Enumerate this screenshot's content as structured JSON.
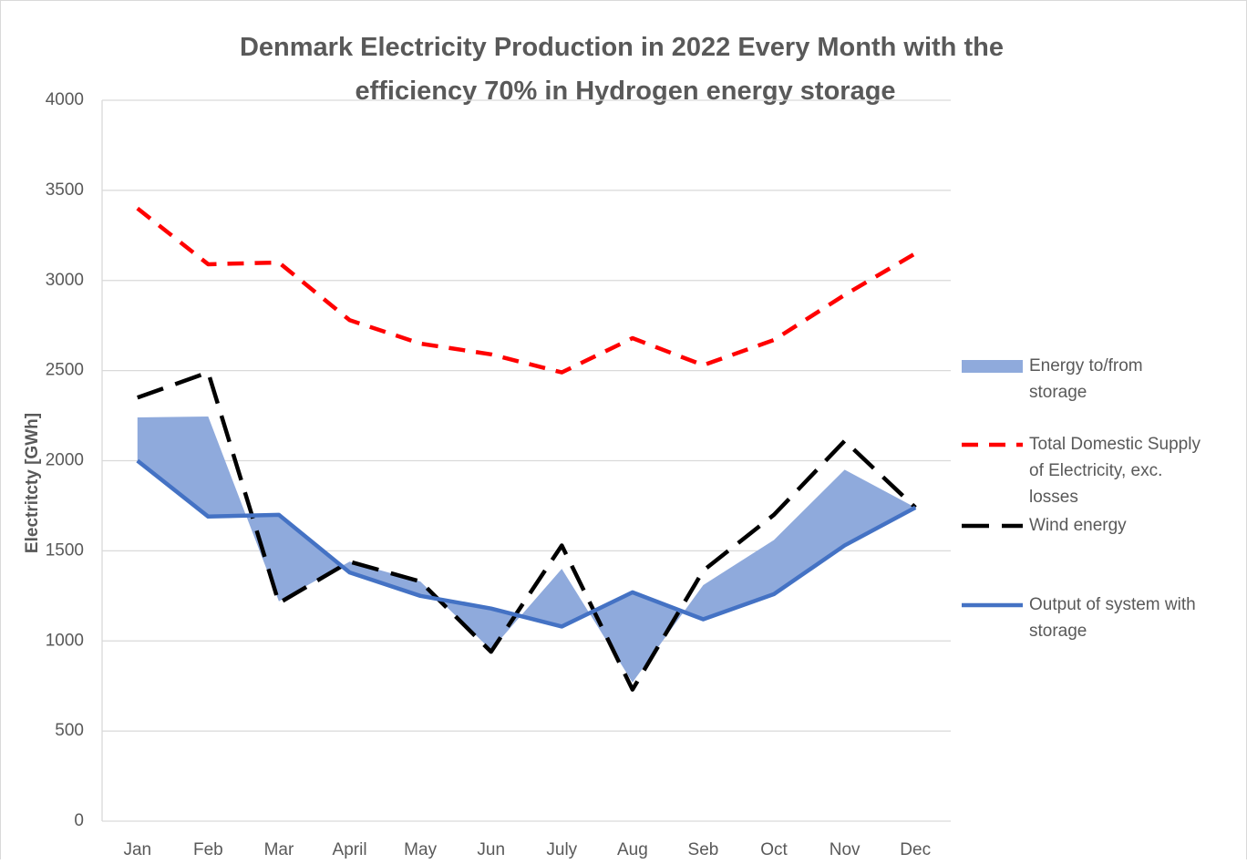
{
  "chart_data": {
    "type": "line",
    "title": "Denmark Electricity Production in 2022 Every Month  with the efficiency 70% in Hydrogen energy storage",
    "y_label": "Electritcty [GWh]",
    "categories": [
      "Jan",
      "Feb",
      "Mar",
      "April",
      "May",
      "Jun",
      "July",
      "Aug",
      "Seb",
      "Oct",
      "Nov",
      "Dec"
    ],
    "series": [
      {
        "name": "Energy to/from storage",
        "kind": "band",
        "color": "#8faadc",
        "values": [
          2240,
          2245,
          1220,
          1440,
          1330,
          950,
          1400,
          770,
          1310,
          1560,
          1950,
          1740
        ]
      },
      {
        "name": "Total Domestic Supply of Electricity, exc. losses",
        "kind": "dashed",
        "color": "#ff0000",
        "values": [
          3400,
          3090,
          3100,
          2780,
          2650,
          2590,
          2490,
          2680,
          2530,
          2670,
          2920,
          3150
        ]
      },
      {
        "name": "Wind energy",
        "kind": "longdash",
        "color": "#000000",
        "values": [
          2350,
          2490,
          1210,
          1440,
          1330,
          940,
          1530,
          730,
          1390,
          1700,
          2110,
          1740
        ]
      },
      {
        "name": "Output of system with storage",
        "kind": "solid",
        "color": "#4472c4",
        "values": [
          2000,
          1690,
          1700,
          1380,
          1250,
          1180,
          1080,
          1270,
          1120,
          1260,
          1530,
          1740
        ]
      }
    ],
    "ylim": [
      0,
      4000
    ],
    "yticks": [
      0,
      500,
      1000,
      1500,
      2000,
      2500,
      3000,
      3500,
      4000
    ],
    "grid": true,
    "legend": "right"
  }
}
